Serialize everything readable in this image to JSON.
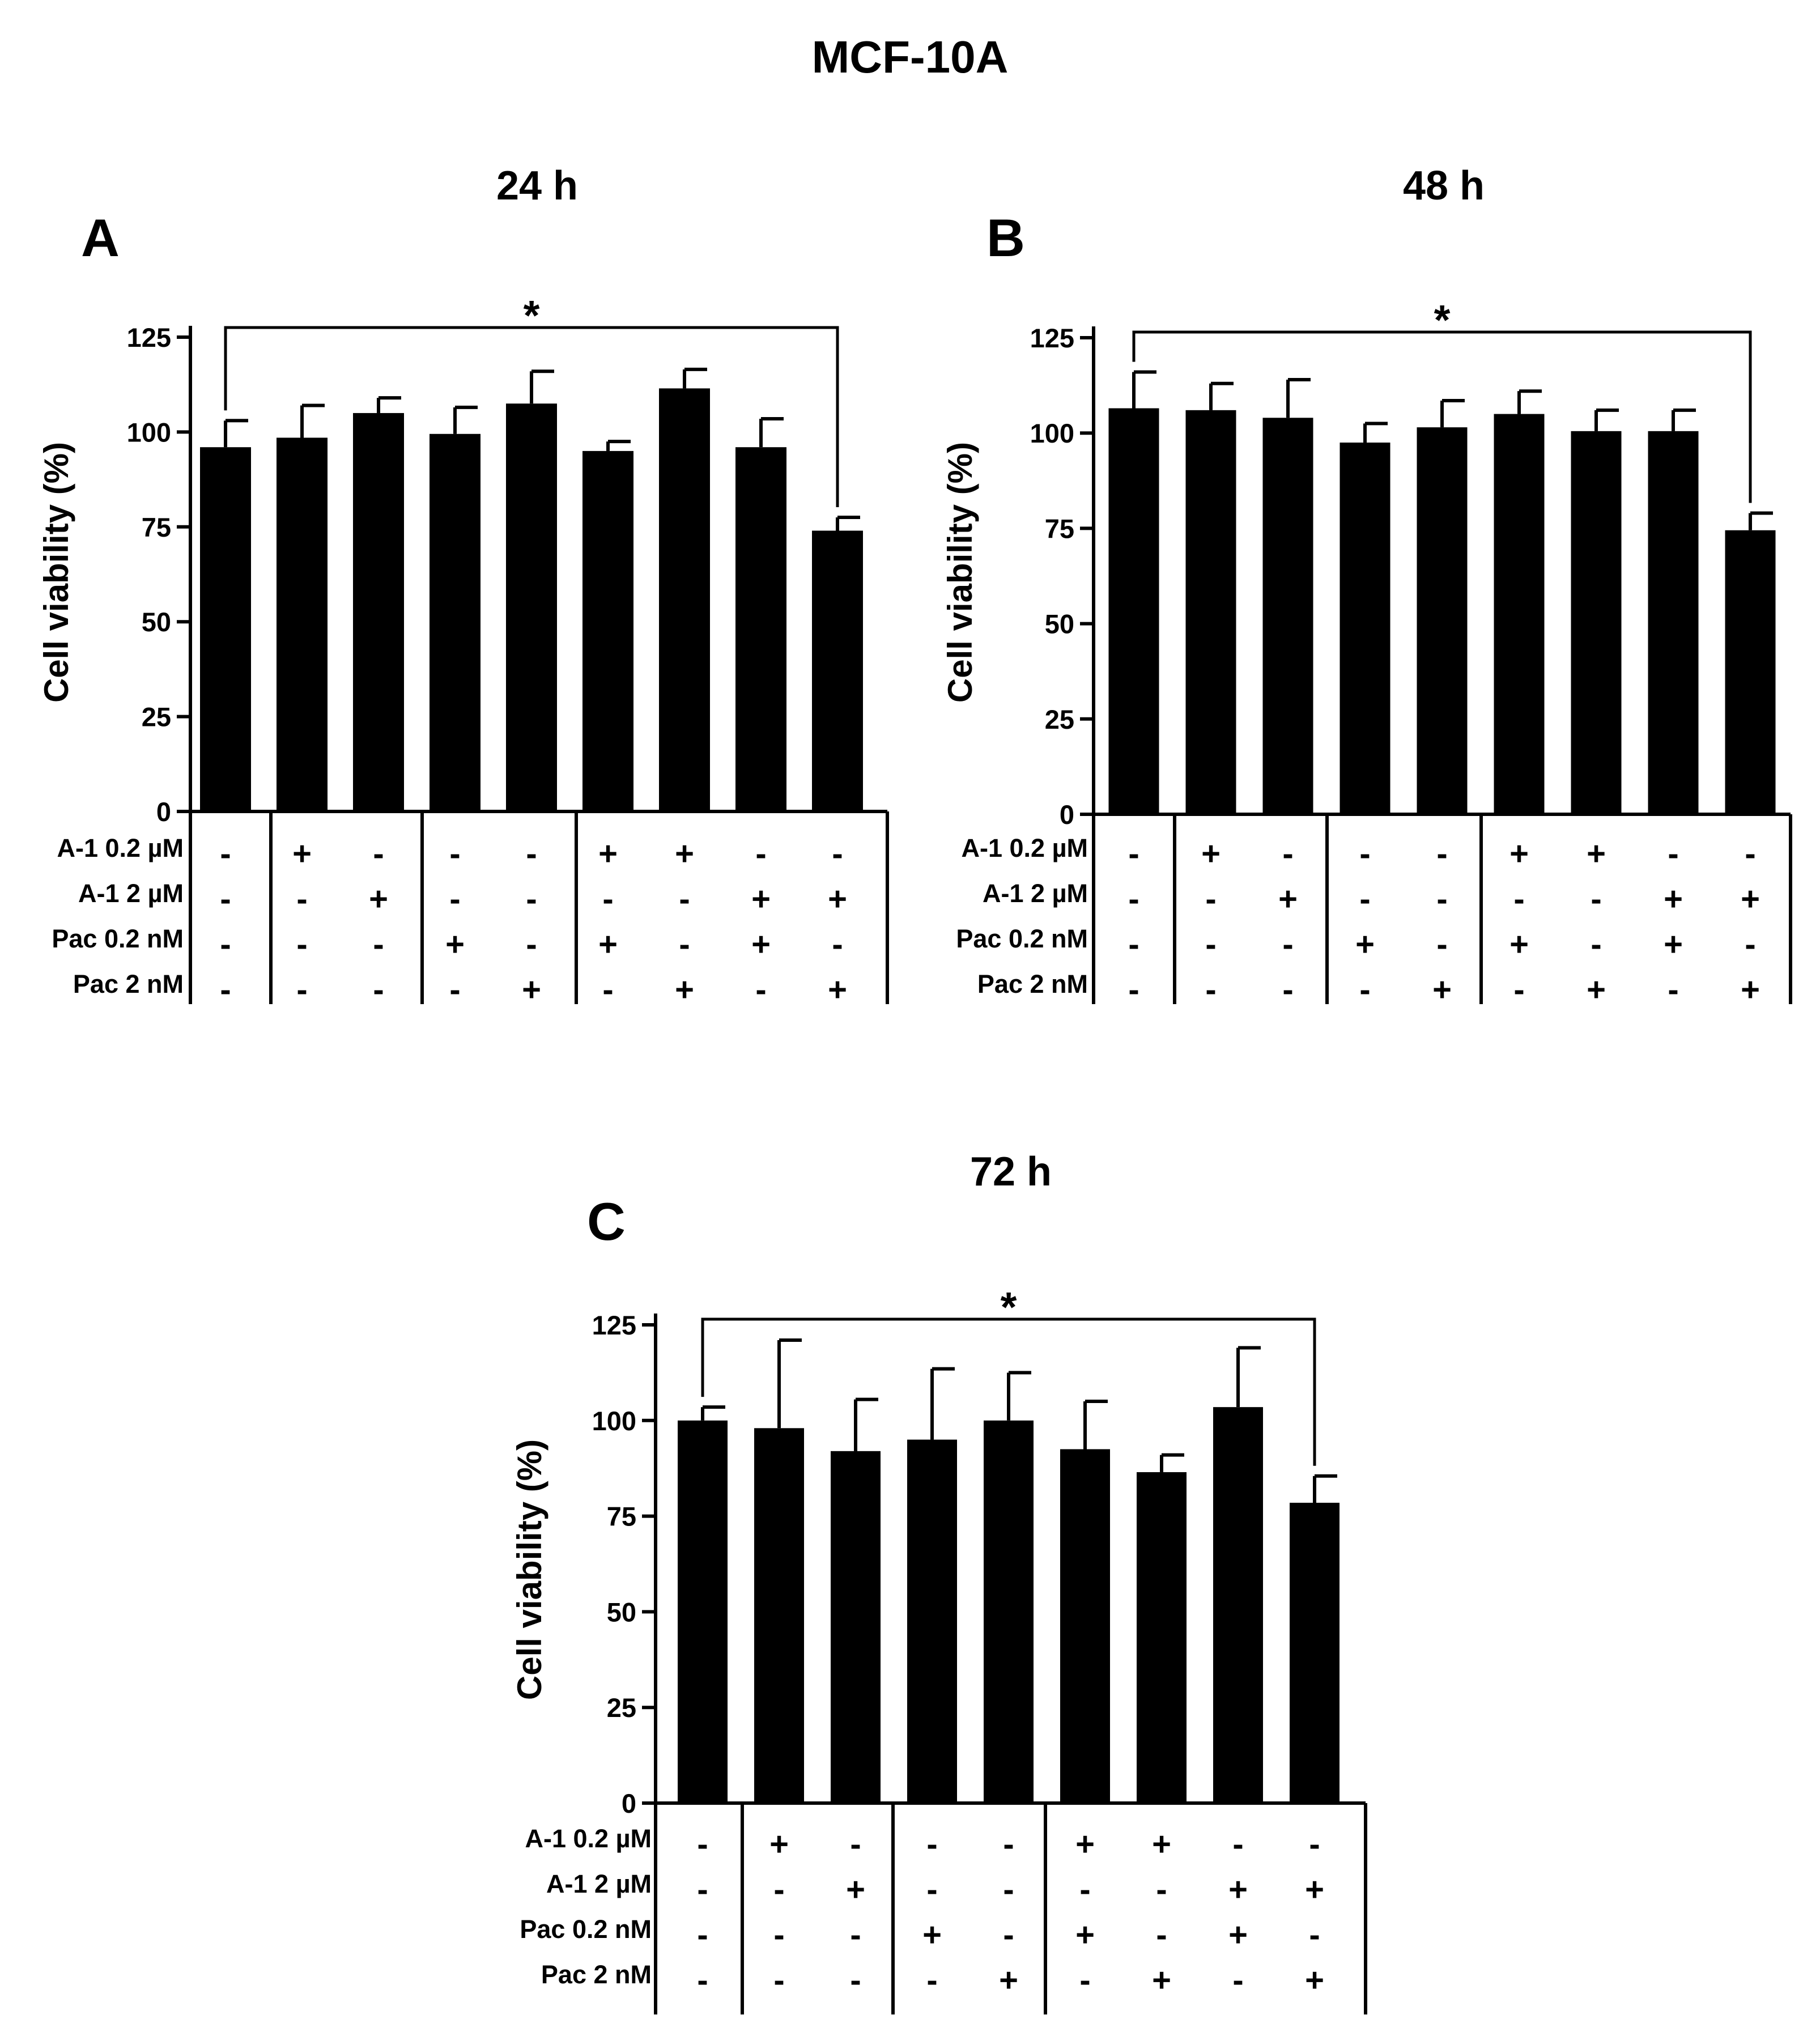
{
  "figure": {
    "title": "MCF-10A"
  },
  "rowLabels": [
    "A-1 0.2 µM",
    "A-1 2 µM",
    "Pac 0.2 nM",
    "Pac 2 nM"
  ],
  "conditions": {
    "A-1 0.2 µM": [
      "-",
      "+",
      "-",
      "-",
      "-",
      "+",
      "+",
      "-",
      "-"
    ],
    "A-1 2 µM": [
      "-",
      "-",
      "+",
      "-",
      "-",
      "-",
      "-",
      "+",
      "+"
    ],
    "Pac 0.2 nM": [
      "-",
      "-",
      "-",
      "+",
      "-",
      "+",
      "-",
      "+",
      "-"
    ],
    "Pac 2 nM": [
      "-",
      "-",
      "-",
      "-",
      "+",
      "-",
      "+",
      "-",
      "+"
    ]
  },
  "chart_data": [
    {
      "type": "bar",
      "panel": "A",
      "title": "24 h",
      "ylabel": "Cell viability (%)",
      "xlabel": "",
      "ylim": [
        0,
        125
      ],
      "yticks": [
        0,
        25,
        50,
        75,
        100,
        125
      ],
      "values": [
        96,
        98.5,
        105,
        99.5,
        107.5,
        95,
        111.5,
        96,
        74
      ],
      "errors": [
        7,
        8.5,
        4,
        7,
        8.5,
        2.5,
        5,
        7.5,
        3.5
      ],
      "significance": {
        "from": 0,
        "to": 8,
        "label": "*"
      }
    },
    {
      "type": "bar",
      "panel": "B",
      "title": "48 h",
      "ylabel": "Cell viability (%)",
      "xlabel": "",
      "ylim": [
        0,
        125
      ],
      "yticks": [
        0,
        25,
        50,
        75,
        100,
        125
      ],
      "values": [
        106.5,
        106,
        104,
        97.5,
        101.5,
        105,
        100.5,
        100.5,
        74.5
      ],
      "errors": [
        9.5,
        7,
        10,
        5,
        7,
        6,
        5.5,
        5.5,
        4.5
      ],
      "significance": {
        "from": 0,
        "to": 8,
        "label": "*"
      }
    },
    {
      "type": "bar",
      "panel": "C",
      "title": "72 h",
      "ylabel": "Cell viability (%)",
      "xlabel": "",
      "ylim": [
        0,
        125
      ],
      "yticks": [
        0,
        25,
        50,
        75,
        100,
        125
      ],
      "values": [
        100,
        98,
        92,
        95,
        100,
        92.5,
        86.5,
        103.5,
        78.5
      ],
      "errors": [
        3.5,
        23,
        13.5,
        18.5,
        12.5,
        12.5,
        4.5,
        15.5,
        7
      ],
      "significance": {
        "from": 0,
        "to": 8,
        "label": "*"
      }
    }
  ]
}
